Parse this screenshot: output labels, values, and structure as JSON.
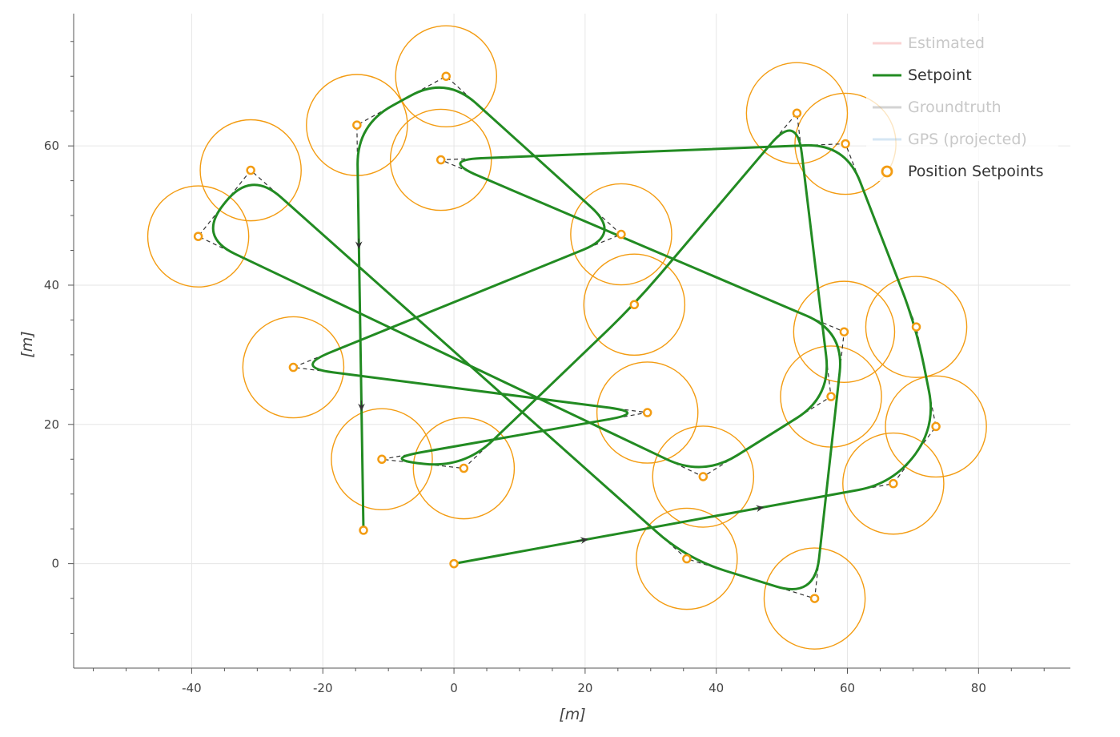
{
  "chart_data": {
    "type": "line",
    "xlabel": "[m]",
    "ylabel": "[m]",
    "xlim": [
      -58,
      94
    ],
    "ylim": [
      -15,
      79
    ],
    "xticks": [
      -40,
      -20,
      0,
      20,
      40,
      60,
      80
    ],
    "yticks": [
      0,
      20,
      40,
      60
    ],
    "grid": true,
    "legend_position": "top-right",
    "colors": {
      "estimated": "#f08080",
      "setpoint": "#228b22",
      "groundtruth": "#808080",
      "gps": "#87b6e0",
      "position_setpoints": "#f39c12",
      "axis": "#444444",
      "grid": "#e6e6e6"
    },
    "legend": [
      {
        "key": "estimated",
        "label": "Estimated",
        "active": false
      },
      {
        "key": "setpoint",
        "label": "Setpoint",
        "active": true
      },
      {
        "key": "groundtruth",
        "label": "Groundtruth",
        "active": false
      },
      {
        "key": "gps",
        "label": "GPS (projected)",
        "active": false
      },
      {
        "key": "position_setpoints",
        "label": "Position Setpoints",
        "active": true
      }
    ],
    "acceptance_radius_m": 7.7,
    "position_setpoints": [
      {
        "x": 0,
        "y": 0
      },
      {
        "x": 67,
        "y": 11.5
      },
      {
        "x": 73.5,
        "y": 19.7
      },
      {
        "x": 70.5,
        "y": 34
      },
      {
        "x": 59.7,
        "y": 60.3
      },
      {
        "x": -2,
        "y": 58
      },
      {
        "x": 59.5,
        "y": 33.3
      },
      {
        "x": 55,
        "y": -5
      },
      {
        "x": 35.5,
        "y": 0.7
      },
      {
        "x": -31,
        "y": 56.5
      },
      {
        "x": -39,
        "y": 47
      },
      {
        "x": 38,
        "y": 12.5
      },
      {
        "x": 57.5,
        "y": 24
      },
      {
        "x": 52.3,
        "y": 64.7
      },
      {
        "x": 27.5,
        "y": 37.2
      },
      {
        "x": 1.5,
        "y": 13.7
      },
      {
        "x": -11,
        "y": 15
      },
      {
        "x": 29.5,
        "y": 21.7
      },
      {
        "x": -24.5,
        "y": 28.2
      },
      {
        "x": 25.5,
        "y": 47.3
      },
      {
        "x": -1.2,
        "y": 70
      },
      {
        "x": -14.8,
        "y": 63
      },
      {
        "x": -13.8,
        "y": 4.8
      }
    ]
  }
}
